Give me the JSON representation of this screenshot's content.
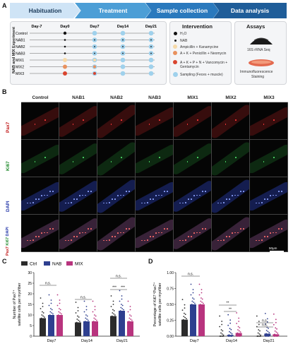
{
  "panelA": {
    "letter": "A",
    "stages": [
      "Habituation",
      "Treatment",
      "Sample collection",
      "Data analysis"
    ],
    "days": [
      "Day-7",
      "Day0",
      "Day7",
      "Day14",
      "Day21"
    ],
    "groups": [
      "Control",
      "NAB1",
      "NAB2",
      "NAB3",
      "MIX1",
      "MIX2",
      "MIX3"
    ],
    "side_label": "NAB and MIX Experiment",
    "intervention": {
      "title": "Intervention",
      "items": [
        "H₂O",
        "NAB",
        "Ampicillin + Kanamycine",
        "A + K + Penicillin + Neomycin",
        "A + K + P + N + Vancomycin + Gentamycin",
        "Sampling (Feces + muscle)"
      ]
    },
    "assays": {
      "title": "Assays",
      "items": [
        "16S rRNA Seq",
        "Immunofluorescence Staining"
      ]
    }
  },
  "panelB": {
    "letter": "B",
    "columns": [
      "Control",
      "NAB1",
      "NAB2",
      "NAB3",
      "MIX1",
      "MIX2",
      "MIX3"
    ],
    "rows": [
      "Pax7",
      "Ki67",
      "DAPI",
      "Pax7 Ki67 DAPI"
    ],
    "scalebar": "50μm"
  },
  "panelC": {
    "letter": "C",
    "legend": [
      "Ctrl",
      "NAB",
      "MIX"
    ],
    "colors": {
      "Ctrl": "#2b2b2b",
      "NAB": "#2e3f8f",
      "MIX": "#b8347e"
    },
    "ylabel_lines": [
      "Number of Pax7⁺",
      "satellite cells per myofiber"
    ],
    "chart_data": {
      "type": "bar",
      "categories": [
        "Day7",
        "Day14",
        "Day21"
      ],
      "series": [
        {
          "name": "Ctrl",
          "values": [
            8.5,
            6.5,
            9.5
          ]
        },
        {
          "name": "NAB",
          "values": [
            10,
            7,
            12
          ]
        },
        {
          "name": "MIX",
          "values": [
            10,
            7,
            7
          ]
        }
      ],
      "ylim": [
        0,
        30
      ],
      "yticks": [
        0,
        5,
        10,
        15,
        20,
        25,
        30
      ],
      "annotations": [
        "n.s.",
        "n.s.",
        "n.s.",
        "***",
        "***"
      ]
    }
  },
  "panelD": {
    "letter": "D",
    "ylabel_lines": [
      "Percentage of Ki67⁺Pax7⁺",
      "satellite cells per myofiber"
    ],
    "chart_data": {
      "type": "bar",
      "categories": [
        "Day7",
        "Day14",
        "Day21"
      ],
      "series": [
        {
          "name": "Ctrl",
          "values": [
            0.26,
            0.0,
            0.0
          ]
        },
        {
          "name": "NAB",
          "values": [
            0.5,
            0.02,
            0.04
          ]
        },
        {
          "name": "MIX",
          "values": [
            0.5,
            0.05,
            0.03
          ]
        }
      ],
      "ylim": [
        0,
        1.0
      ],
      "yticks": [
        "0.00",
        "0.25",
        "0.50",
        "0.75",
        "1.00"
      ],
      "annotations": [
        "n.s.",
        "**",
        "**",
        "n.s.",
        "n.s."
      ]
    }
  }
}
